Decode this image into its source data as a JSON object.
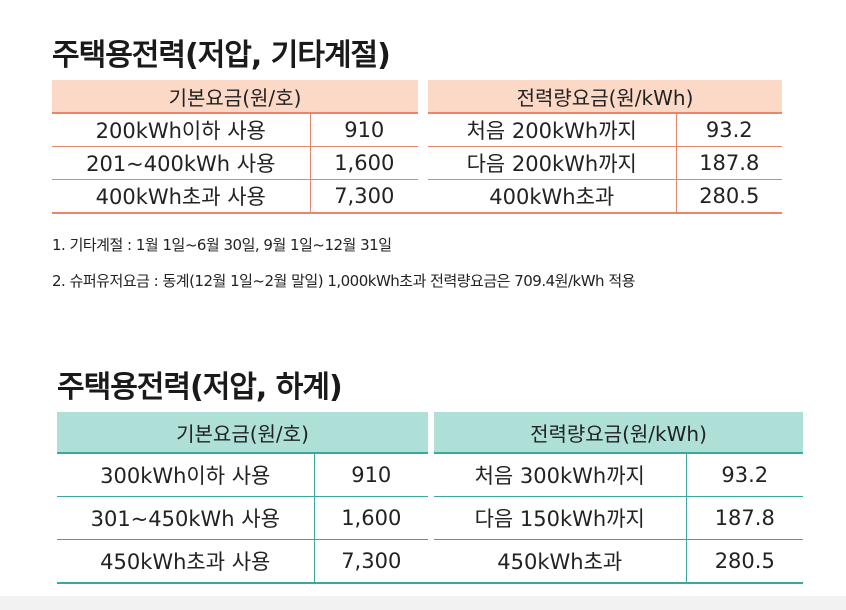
{
  "section1": {
    "title": "주택용전력(저압, 기타계절)",
    "header_basic": "기본요금(원/호)",
    "header_energy": "전력량요금(원/kWh)",
    "rows": [
      {
        "basic_label": "200kWh이하 사용",
        "basic_value": "910",
        "energy_label": "처음 200kWh까지",
        "energy_value": "93.2"
      },
      {
        "basic_label": "201~400kWh 사용",
        "basic_value": "1,600",
        "energy_label": "다음 200kWh까지",
        "energy_value": "187.8"
      },
      {
        "basic_label": "400kWh초과 사용",
        "basic_value": "7,300",
        "energy_label": "400kWh초과",
        "energy_value": "280.5"
      }
    ],
    "notes": [
      "1. 기타계절 : 1월 1일~6월 30일, 9월 1일~12월 31일",
      "2. 슈퍼유저요금 : 동계(12월 1일~2월 말일) 1,000kWh초과 전력량요금은 709.4원/kWh 적용"
    ]
  },
  "section2": {
    "title": "주택용전력(저압, 하계)",
    "header_basic": "기본요금(원/호)",
    "header_energy": "전력량요금(원/kWh)",
    "rows": [
      {
        "basic_label": "300kWh이하 사용",
        "basic_value": "910",
        "energy_label": "처음 300kWh까지",
        "energy_value": "93.2"
      },
      {
        "basic_label": "301~450kWh 사용",
        "basic_value": "1,600",
        "energy_label": "다음 150kWh까지",
        "energy_value": "187.8"
      },
      {
        "basic_label": "450kWh초과 사용",
        "basic_value": "7,300",
        "energy_label": "450kWh초과",
        "energy_value": "280.5"
      }
    ]
  },
  "colors": {
    "section1_header_bg": "#fcd9c7",
    "section1_rule": "#e8866a",
    "section2_header_bg": "#aee0d8",
    "section2_rule": "#3aa89a"
  }
}
